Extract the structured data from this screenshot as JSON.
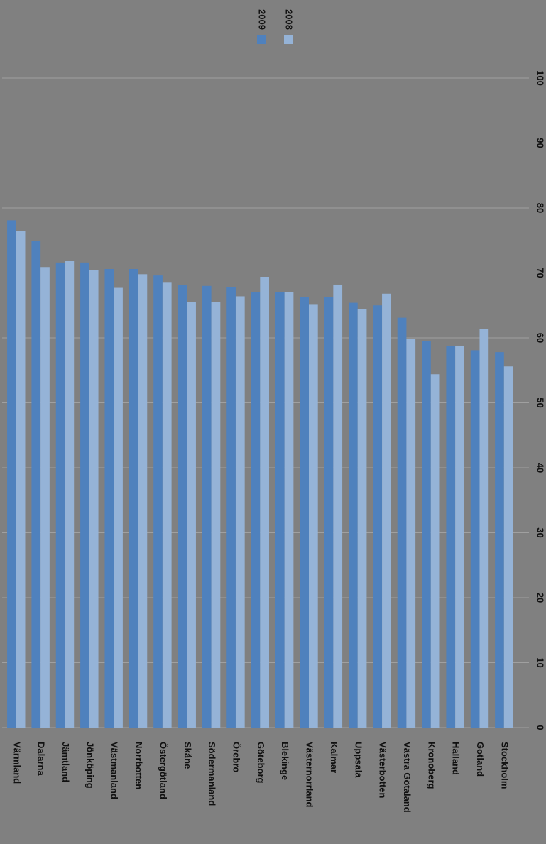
{
  "chart_data": {
    "type": "bar",
    "categories": [
      "Värmland",
      "Dalarna",
      "Jämtland",
      "Jönköping",
      "Västmanland",
      "Norrbotten",
      "Östergötland",
      "Skåne",
      "Södermanland",
      "Örebro",
      "Göteborg",
      "Blekinge",
      "Västernorrland",
      "Kalmar",
      "Uppsala",
      "Västerbotten",
      "Västra Götaland",
      "Kronoberg",
      "Halland",
      "Gotland",
      "Stockholm"
    ],
    "series": [
      {
        "name": "2009",
        "color": "#4f81bd",
        "values": [
          78.1,
          74.9,
          71.6,
          71.6,
          70.6,
          70.6,
          69.6,
          68.1,
          68.0,
          67.8,
          67.0,
          67.0,
          66.3,
          66.3,
          65.4,
          65.0,
          63.1,
          59.5,
          58.8,
          58.1,
          57.8
        ]
      },
      {
        "name": "2008",
        "color": "#95b3d7",
        "values": [
          76.5,
          70.9,
          71.9,
          70.4,
          67.7,
          69.8,
          68.6,
          65.5,
          65.5,
          66.4,
          69.4,
          67.0,
          65.2,
          68.2,
          64.4,
          66.8,
          59.8,
          54.4,
          58.8,
          61.4,
          55.6
        ]
      }
    ],
    "ylim": [
      0,
      100
    ],
    "yticks": [
      0,
      10,
      20,
      30,
      40,
      50,
      60,
      70,
      80,
      90,
      100
    ],
    "grid": true
  }
}
